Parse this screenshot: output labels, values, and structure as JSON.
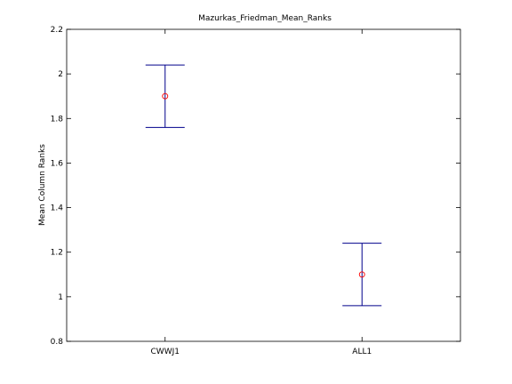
{
  "chart_data": {
    "type": "errorbar",
    "title": "Mazurkas_Friedman_Mean_Ranks",
    "xlabel": "",
    "ylabel": "Mean Column Ranks",
    "categories": [
      "CWWJ1",
      "ALL1"
    ],
    "means": [
      1.9,
      1.1
    ],
    "lower": [
      1.76,
      0.96
    ],
    "upper": [
      2.04,
      1.24
    ],
    "ylim": [
      0.8,
      2.2
    ],
    "yticks": [
      0.8,
      1,
      1.2,
      1.4,
      1.6,
      1.8,
      2,
      2.2
    ],
    "ytick_labels": [
      "0.8",
      "1",
      "1.2",
      "1.4",
      "1.6",
      "1.8",
      "2",
      "2.2"
    ],
    "grid": false,
    "colors": {
      "errorbar": "#00008b",
      "marker": "#ff0000",
      "axes": "#000000"
    }
  }
}
